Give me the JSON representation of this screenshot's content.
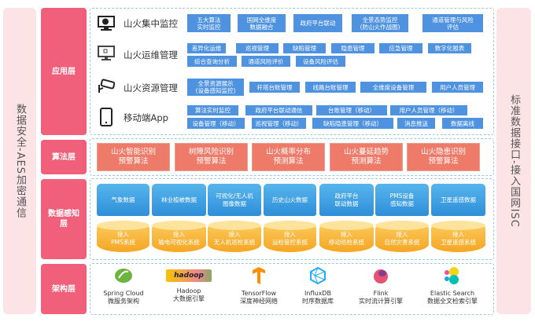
{
  "left_bar": "数据安全-AES加密通信",
  "right_bar": "标准数据接口-接入国网ISC",
  "layers": {
    "app": "应用层",
    "algo": "算法层",
    "data": "数据感知层",
    "arch": "架构层"
  },
  "app_rows": [
    {
      "label": "山火集中监控",
      "icon": "monitor-chart-icon",
      "items": [
        "五大算法\n实时监控",
        "国网全维度\n数据融合",
        "政府平台联动",
        "全景态势监控\n(防山火作战图)",
        "通道管理与风险\n评估"
      ]
    },
    {
      "label": "山火运维管理",
      "icon": "computer-icon",
      "items": [
        "差异化运维",
        "巡视管理",
        "缺陷管理",
        "隐患管理",
        "应急管理",
        "数字化报表",
        "综合查询分析",
        "通道风险评价",
        "设备风险评估"
      ]
    },
    {
      "label": "山火资源管理",
      "icon": "camera-icon",
      "items": [
        "全景资源展示\n(设备感知监控)",
        "杆塔台账管理",
        "线路台账管理",
        "全维度设备管理",
        "用户人员管理"
      ]
    },
    {
      "label": "移动端App",
      "icon": "tablet-icon",
      "items": [
        "算法实时监控",
        "政府平台联动通信",
        "台账管理（移动）",
        "用户人员管理（移动）",
        "设备管理（移动）",
        "巡视管理（移动）",
        "缺陷隐患管理（移动）",
        "消息推送",
        "数据离线"
      ]
    }
  ],
  "algorithms": [
    "山火智能识别\n预警算法",
    "树障风险识别\n预警算法",
    "山火概率分布\n预测算法",
    "山火蔓延趋势\n预测算法",
    "山火隐患识别\n预警算法"
  ],
  "data_sources": [
    "气象数据",
    "林业植被数据",
    "可视化/无人机\n图像数据",
    "历史山火数据",
    "政府平台\n联动数据",
    "PMS设备\n感知数据",
    "卫星遥感数据"
  ],
  "integrations": [
    "接入\nPMS系统",
    "接入\n输电可视化系统",
    "接入\n无人机巡检系统",
    "接入\n运检管控系统",
    "接入\n移动巡检系统",
    "接入\n自然灾害系统",
    "接入\n卫星遥感系统"
  ],
  "tech": [
    {
      "name": "Spring Cloud",
      "desc": "微服务架构",
      "icon": "spring-icon",
      "color": "#6db33f"
    },
    {
      "name": "Hadoop",
      "desc": "大数据引擎",
      "icon": "hadoop-logo",
      "logo_text": "hadoop",
      "color": "#f5c400"
    },
    {
      "name": "TensorFlow",
      "desc": "深度神经网络",
      "icon": "tensorflow-icon",
      "color": "#ff8f00"
    },
    {
      "name": "InfluxDB",
      "desc": "时序数据库",
      "icon": "influxdb-icon",
      "color": "#22adf6"
    },
    {
      "name": "Flink",
      "desc": "实时流计算引擎",
      "icon": "flink-icon",
      "color": "#e6526f"
    },
    {
      "name": "Elastic Search",
      "desc": "数据全文检索引擎",
      "icon": "elastic-icon",
      "color": "#00bfb3"
    }
  ]
}
